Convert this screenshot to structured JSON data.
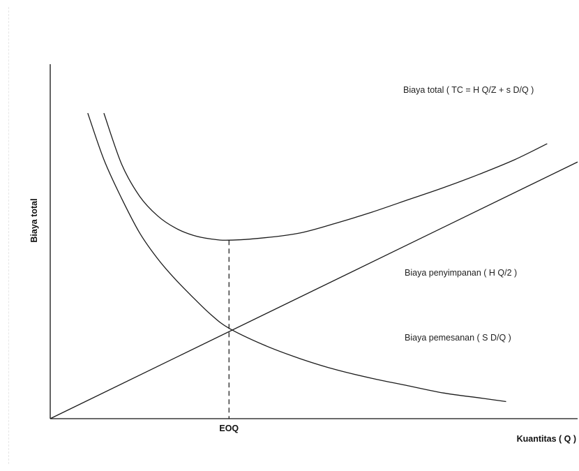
{
  "chart_data": {
    "type": "line",
    "title": "",
    "xlabel": "Kuantitas ( Q )",
    "ylabel": "Biaya total",
    "x_tick_label": "EOQ",
    "eoq": 1,
    "xlim": [
      0,
      2.95
    ],
    "ylim": [
      0,
      2.9
    ],
    "grid": false,
    "legend": "none",
    "series": [
      {
        "name": "Biaya total  ( TC = H Q/Z + s D/Q  )",
        "x": [
          0.3,
          0.4,
          0.5,
          0.6,
          0.7,
          0.8,
          0.9,
          1.0,
          1.2,
          1.4,
          1.6,
          1.8,
          2.0,
          2.2,
          2.4,
          2.6,
          2.78
        ],
        "y": [
          2.5,
          2.08,
          1.82,
          1.66,
          1.56,
          1.5,
          1.47,
          1.46,
          1.48,
          1.52,
          1.6,
          1.69,
          1.79,
          1.89,
          2.0,
          2.12,
          2.25
        ]
      },
      {
        "name": "Biaya penyimpanan ( H Q/2 )",
        "x": [
          0,
          2.95
        ],
        "y": [
          0,
          2.1
        ]
      },
      {
        "name": "Biaya pemesanan ( S  D/Q )",
        "x": [
          0.21,
          0.3,
          0.4,
          0.5,
          0.6,
          0.7,
          0.8,
          0.9,
          1.0,
          1.2,
          1.4,
          1.6,
          1.8,
          2.0,
          2.2,
          2.4,
          2.55
        ],
        "y": [
          2.5,
          2.12,
          1.8,
          1.52,
          1.31,
          1.14,
          0.99,
          0.85,
          0.74,
          0.6,
          0.49,
          0.4,
          0.33,
          0.27,
          0.21,
          0.17,
          0.14
        ]
      }
    ]
  }
}
